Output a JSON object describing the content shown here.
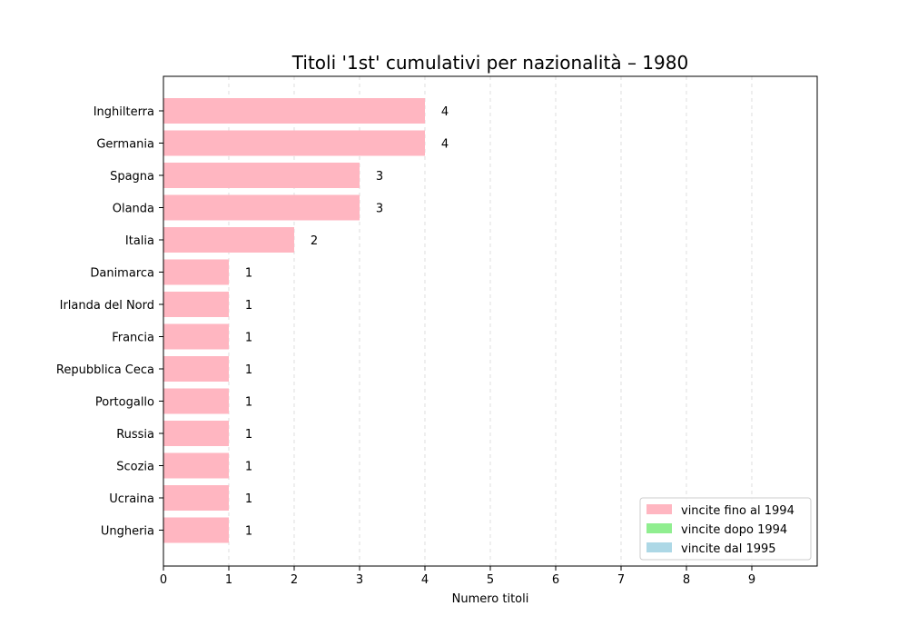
{
  "chart_data": {
    "type": "bar",
    "orientation": "horizontal",
    "title": "Titoli '1st' cumulativi per nazionalità – 1980",
    "xlabel": "Numero titoli",
    "ylabel": "",
    "xlim": [
      0,
      10
    ],
    "xticks": [
      0,
      1,
      2,
      3,
      4,
      5,
      6,
      7,
      8,
      9
    ],
    "grid": "x-dashed",
    "legend_position": "bottom-right",
    "categories": [
      "Inghilterra",
      "Germania",
      "Spagna",
      "Olanda",
      "Italia",
      "Danimarca",
      "Irlanda del Nord",
      "Francia",
      "Repubblica Ceca",
      "Portogallo",
      "Russia",
      "Scozia",
      "Ucraina",
      "Ungheria"
    ],
    "series": [
      {
        "name": "vincite fino al 1994",
        "color": "#ffb6c1",
        "values": [
          4,
          4,
          3,
          3,
          2,
          1,
          1,
          1,
          1,
          1,
          1,
          1,
          1,
          1
        ]
      },
      {
        "name": "vincite dopo 1994",
        "color": "#90ee90",
        "values": [
          0,
          0,
          0,
          0,
          0,
          0,
          0,
          0,
          0,
          0,
          0,
          0,
          0,
          0
        ]
      },
      {
        "name": "vincite dal 1995",
        "color": "#add8e6",
        "values": [
          0,
          0,
          0,
          0,
          0,
          0,
          0,
          0,
          0,
          0,
          0,
          0,
          0,
          0
        ]
      }
    ],
    "data_labels": [
      "4",
      "4",
      "3",
      "3",
      "2",
      "1",
      "1",
      "1",
      "1",
      "1",
      "1",
      "1",
      "1",
      "1"
    ]
  }
}
